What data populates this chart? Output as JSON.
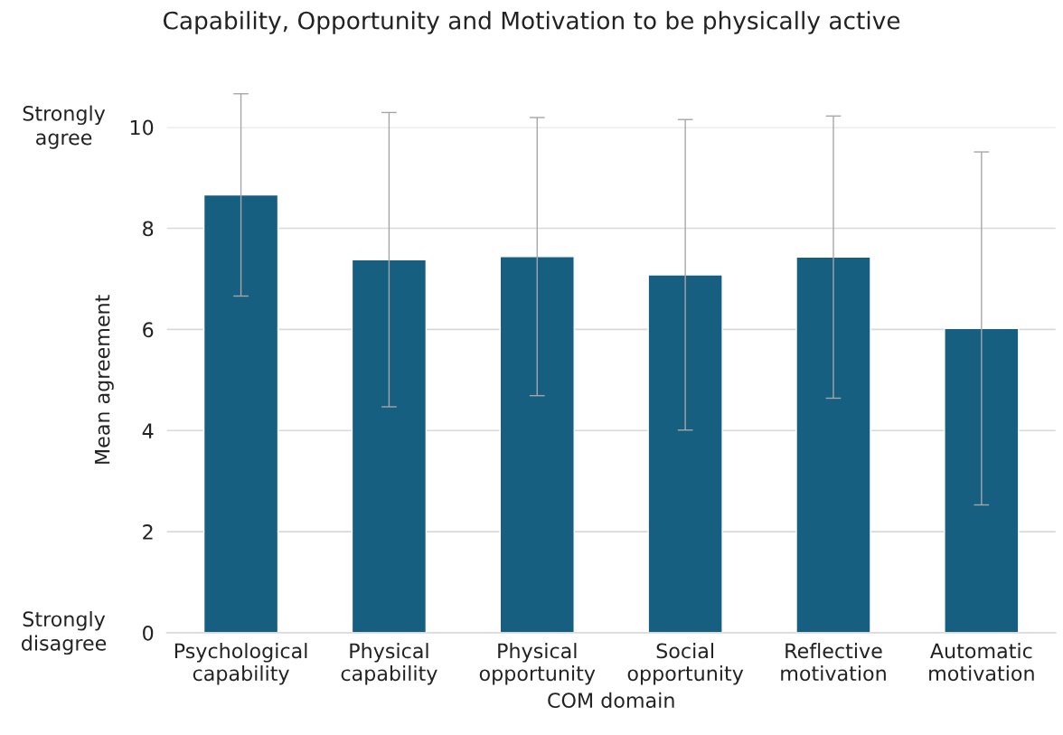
{
  "chart_data": {
    "type": "bar",
    "title": "Capability, Opportunity and Motivation to be physically active",
    "xlabel": "COM domain",
    "ylabel": "Mean agreement",
    "categories": [
      "Psychological capability",
      "Physical capability",
      "Physical opportunity",
      "Social opportunity",
      "Reflective motivation",
      "Automatic motivation"
    ],
    "values": [
      8.66,
      7.38,
      7.44,
      7.08,
      7.43,
      6.02
    ],
    "errors": [
      2.0,
      2.91,
      2.75,
      3.07,
      2.79,
      3.49
    ],
    "color": "#175f80",
    "ylim": [
      0,
      10
    ],
    "yticks": [
      0,
      2,
      4,
      6,
      8,
      10
    ],
    "grid": "y",
    "annotations": [
      "Strongly agree",
      "Strongly disagree"
    ]
  }
}
